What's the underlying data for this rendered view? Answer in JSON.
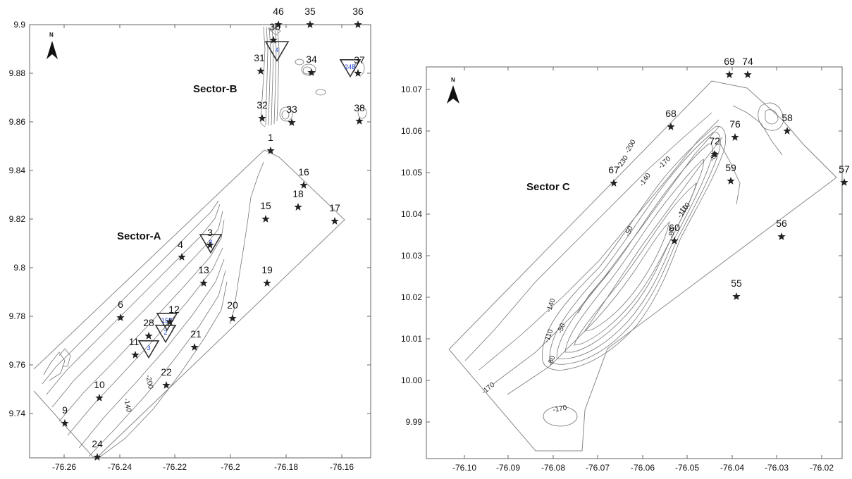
{
  "maps": [
    {
      "id": "left",
      "x_ticks": [
        "-76.26",
        "-76.24",
        "-76.22",
        "-76.2",
        "-76.18",
        "-76.16"
      ],
      "y_ticks": [
        "9.9",
        "9.88",
        "9.86",
        "9.84",
        "9.82",
        "9.8",
        "9.78",
        "9.76",
        "9.74"
      ],
      "north_label": "N",
      "sectors": [
        "Sector-B",
        "Sector-A"
      ],
      "contour_labels": [
        "-200",
        "-140"
      ],
      "stations": [
        "46",
        "35",
        "36",
        "30",
        "31",
        "34",
        "37",
        "32",
        "33",
        "38",
        "1",
        "16",
        "18",
        "17",
        "15",
        "3",
        "4",
        "13",
        "19",
        "20",
        "12",
        "28",
        "21",
        "6",
        "11",
        "22",
        "10",
        "9",
        "24"
      ],
      "triangles": [
        "4",
        "24B",
        "3",
        "15B",
        "2",
        "3"
      ]
    },
    {
      "id": "right",
      "x_ticks": [
        "-76.10",
        "-76.09",
        "-76.08",
        "-76.07",
        "-76.06",
        "-76.05",
        "-76.04",
        "-76.03",
        "-76.02"
      ],
      "y_ticks": [
        "10.07",
        "10.06",
        "10.05",
        "10.04",
        "10.03",
        "10.02",
        "10.01",
        "10.00",
        "9.99"
      ],
      "north_label": "N",
      "sectors": [
        "Sector C"
      ],
      "contour_labels": [
        "-200",
        "-230",
        "-170",
        "-140",
        "-110",
        "-50",
        "-80",
        "-80",
        "-110",
        "-140",
        "-50",
        "-110",
        "-80",
        "-170",
        "-170"
      ],
      "stations": [
        "69",
        "74",
        "68",
        "76",
        "58",
        "72",
        "67",
        "59",
        "57",
        "60",
        "56",
        "55"
      ]
    }
  ]
}
